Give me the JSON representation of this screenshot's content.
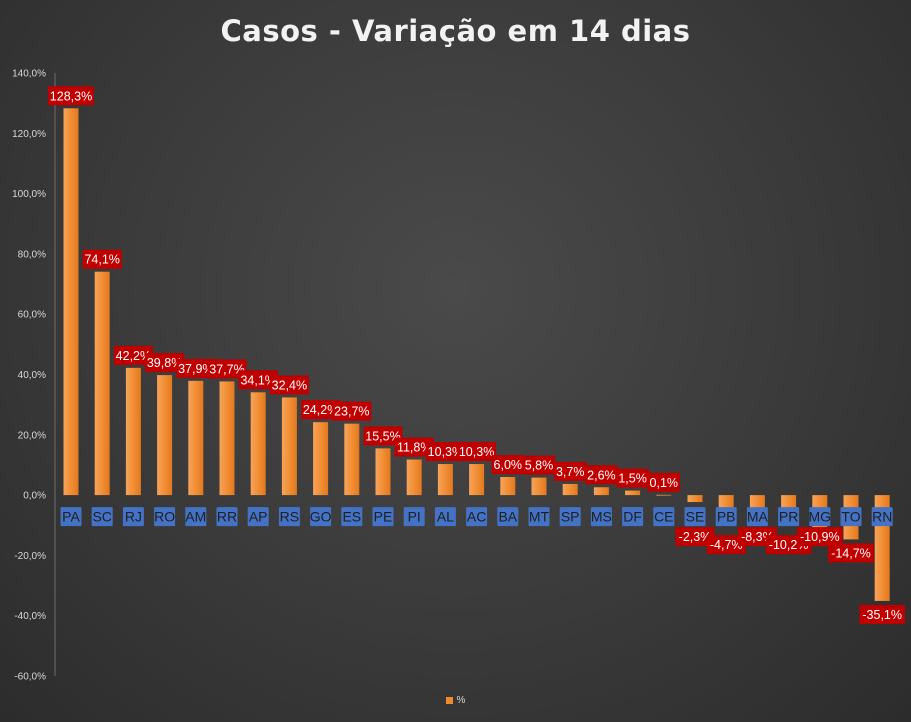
{
  "chart_data": {
    "type": "bar",
    "title": "Casos - Variação em 14 dias",
    "categories": [
      "PA",
      "SC",
      "RJ",
      "RO",
      "AM",
      "RR",
      "AP",
      "RS",
      "GO",
      "ES",
      "PE",
      "PI",
      "AL",
      "AC",
      "BA",
      "MT",
      "SP",
      "MS",
      "DF",
      "CE",
      "SE",
      "PB",
      "MA",
      "PR",
      "MG",
      "TO",
      "RN"
    ],
    "series": [
      {
        "name": "%",
        "values": [
          128.3,
          74.1,
          42.2,
          39.8,
          37.9,
          37.7,
          34.1,
          32.4,
          24.2,
          23.7,
          15.5,
          11.8,
          10.3,
          10.3,
          6.0,
          5.8,
          3.7,
          2.6,
          1.5,
          0.1,
          -2.3,
          -4.7,
          -8.3,
          -10.2,
          -10.9,
          -14.7,
          -35.1
        ]
      }
    ],
    "data_labels": [
      "128,3%",
      "74,1%",
      "42,2%",
      "39,8%",
      "37,9%",
      "37,7%",
      "34,1%",
      "32,4%",
      "24,2%",
      "23,7%",
      "15,5%",
      "11,8%",
      "10,3%",
      "10,3%",
      "6,0%",
      "5,8%",
      "3,7%",
      "2,6%",
      "1,5%",
      "0,1%",
      "-2,3%",
      "-4,7%",
      "-8,3%",
      "-10,2%",
      "-10,9%",
      "-14,7%",
      "-35,1%"
    ],
    "ylim": [
      -60,
      140
    ],
    "yticks": [
      "140,0%",
      "120,0%",
      "100,0%",
      "80,0%",
      "60,0%",
      "40,0%",
      "20,0%",
      "0,0%",
      "-20,0%",
      "-40,0%",
      "-60,0%"
    ],
    "legend": "bottom",
    "grid": false,
    "colors": {
      "bar": "#f08a2e",
      "bar_light": "#f8b06a",
      "label_bg": "#c00000",
      "category_bg": "#4472c4"
    }
  }
}
